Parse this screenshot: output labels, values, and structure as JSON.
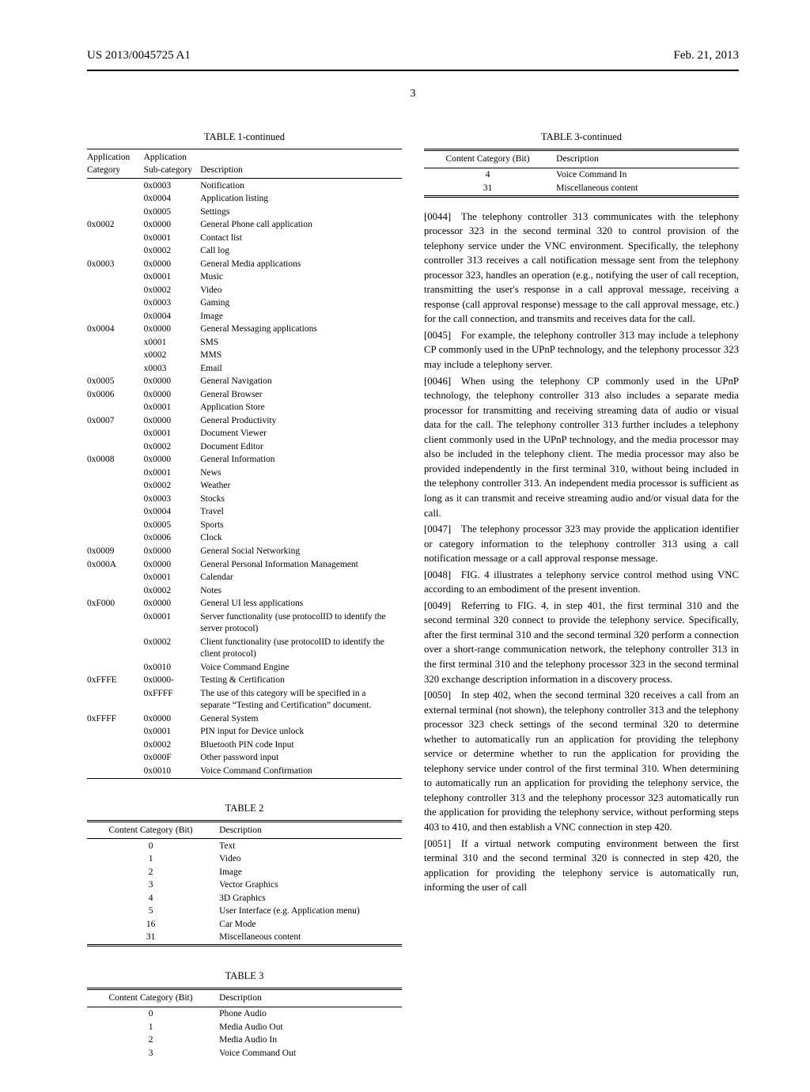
{
  "header": {
    "pub_number": "US 2013/0045725 A1",
    "pub_date": "Feb. 21, 2013",
    "page": "3"
  },
  "table1": {
    "title": "TABLE 1-continued",
    "head": {
      "col1": "Application\nCategory",
      "col2": "Application\nSub-category",
      "col3": "Description"
    },
    "rows": [
      [
        "",
        "0x0003",
        "Notification"
      ],
      [
        "",
        "0x0004",
        "Application listing"
      ],
      [
        "",
        "0x0005",
        "Settings"
      ],
      [
        "0x0002",
        "0x0000",
        "General Phone call application"
      ],
      [
        "",
        "0x0001",
        "Contact list"
      ],
      [
        "",
        "0x0002",
        "Call log"
      ],
      [
        "0x0003",
        "0x0000",
        "General Media applications"
      ],
      [
        "",
        "0x0001",
        "Music"
      ],
      [
        "",
        "0x0002",
        "Video"
      ],
      [
        "",
        "0x0003",
        "Gaming"
      ],
      [
        "",
        "0x0004",
        "Image"
      ],
      [
        "0x0004",
        "0x0000",
        "General Messaging applications"
      ],
      [
        "",
        "x0001",
        "SMS"
      ],
      [
        "",
        "x0002",
        "MMS"
      ],
      [
        "",
        "x0003",
        "Email"
      ],
      [
        "0x0005",
        "0x0000",
        "General Navigation"
      ],
      [
        "0x0006",
        "0x0000",
        "General Browser"
      ],
      [
        "",
        "0x0001",
        "Application Store"
      ],
      [
        "0x0007",
        "0x0000",
        "General Productivity"
      ],
      [
        "",
        "0x0001",
        "Document Viewer"
      ],
      [
        "",
        "0x0002",
        "Document Editor"
      ],
      [
        "0x0008",
        "0x0000",
        "General Information"
      ],
      [
        "",
        "0x0001",
        "News"
      ],
      [
        "",
        "0x0002",
        "Weather"
      ],
      [
        "",
        "0x0003",
        "Stocks"
      ],
      [
        "",
        "0x0004",
        "Travel"
      ],
      [
        "",
        "0x0005",
        "Sports"
      ],
      [
        "",
        "0x0006",
        "Clock"
      ],
      [
        "0x0009",
        "0x0000",
        "General Social Networking"
      ],
      [
        "0x000A",
        "0x0000",
        "General Personal Information Management"
      ],
      [
        "",
        "0x0001",
        "Calendar"
      ],
      [
        "",
        "0x0002",
        "Notes"
      ],
      [
        "0xF000",
        "0x0000",
        "General UI less applications"
      ],
      [
        "",
        "0x0001",
        "Server functionality (use protocolID to identify the server protocol)"
      ],
      [
        "",
        "0x0002",
        "Client functionality (use protocolID to identify the client protocol)"
      ],
      [
        "",
        "0x0010",
        "Voice Command Engine"
      ],
      [
        "0xFFFE",
        "0x0000-",
        "Testing & Certification"
      ],
      [
        "",
        "0xFFFF",
        "The use of this category will be specified in a separate “Testing and Certification” document."
      ],
      [
        "0xFFFF",
        "0x0000",
        "General System"
      ],
      [
        "",
        "0x0001",
        "PIN input for Device unlock"
      ],
      [
        "",
        "0x0002",
        "Bluetooth PIN code Input"
      ],
      [
        "",
        "0x000F",
        "Other password input"
      ],
      [
        "",
        "0x0010",
        "Voice Command Confirmation"
      ]
    ]
  },
  "table2": {
    "title": "TABLE 2",
    "head": {
      "col1": "Content Category (Bit)",
      "col2": "Description"
    },
    "rows": [
      [
        "0",
        "Text"
      ],
      [
        "1",
        "Video"
      ],
      [
        "2",
        "Image"
      ],
      [
        "3",
        "Vector Graphics"
      ],
      [
        "4",
        "3D Graphics"
      ],
      [
        "5",
        "User Interface (e.g. Application menu)"
      ],
      [
        "16",
        "Car Mode"
      ],
      [
        "31",
        "Miscellaneous content"
      ]
    ]
  },
  "table3": {
    "title": "TABLE 3",
    "head": {
      "col1": "Content Category (Bit)",
      "col2": "Description"
    },
    "rows": [
      [
        "0",
        "Phone Audio"
      ],
      [
        "1",
        "Media Audio Out"
      ],
      [
        "2",
        "Media Audio In"
      ],
      [
        "3",
        "Voice Command Out"
      ]
    ]
  },
  "table3c": {
    "title": "TABLE 3-continued",
    "head": {
      "col1": "Content Category (Bit)",
      "col2": "Description"
    },
    "rows": [
      [
        "4",
        "Voice Command In"
      ],
      [
        "31",
        "Miscellaneous content"
      ]
    ]
  },
  "paras": {
    "p44": "[0044] The telephony controller 313 communicates with the telephony processor 323 in the second terminal 320 to control provision of the telephony service under the VNC environment. Specifically, the telephony controller 313 receives a call notification message sent from the telephony processor 323, handles an operation (e.g., notifying the user of call reception, transmitting the user's response in a call approval message, receiving a response (call approval response) message to the call approval message, etc.) for the call connection, and transmits and receives data for the call.",
    "p45": "[0045] For example, the telephony controller 313 may include a telephony CP commonly used in the UPnP technology, and the telephony processor 323 may include a telephony server.",
    "p46": "[0046] When using the telephony CP commonly used in the UPnP technology, the telephony controller 313 also includes a separate media processor for transmitting and receiving streaming data of audio or visual data for the call. The telephony controller 313 further includes a telephony client commonly used in the UPnP technology, and the media processor may also be included in the telephony client. The media processor may also be provided independently in the first terminal 310, without being included in the telephony controller 313. An independent media processor is sufficient as long as it can transmit and receive streaming audio and/or visual data for the call.",
    "p47": "[0047] The telephony processor 323 may provide the application identifier or category information to the telephony controller 313 using a call notification message or a call approval response message.",
    "p48": "[0048] FIG. 4 illustrates a telephony service control method using VNC according to an embodiment of the present invention.",
    "p49": "[0049] Referring to FIG. 4, in step 401, the first terminal 310 and the second terminal 320 connect to provide the telephony service. Specifically, after the first terminal 310 and the second terminal 320 perform a connection over a short-range communication network, the telephony controller 313 in the first terminal 310 and the telephony processor 323 in the second terminal 320 exchange description information in a discovery process.",
    "p50": "[0050] In step 402, when the second terminal 320 receives a call from an external terminal (not shown), the telephony controller 313 and the telephony processor 323 check settings of the second terminal 320 to determine whether to automatically run an application for providing the telephony service or determine whether to run the application for providing the telephony service under control of the first terminal 310. When determining to automatically run an application for providing the telephony service, the telephony controller 313 and the telephony processor 323 automatically run the application for providing the telephony service, without performing steps 403 to 410, and then establish a VNC connection in step 420.",
    "p51": "[0051] If a virtual network computing environment between the first terminal 310 and the second terminal 320 is connected in step 420, the application for providing the telephony service is automatically run, informing the user of call"
  }
}
